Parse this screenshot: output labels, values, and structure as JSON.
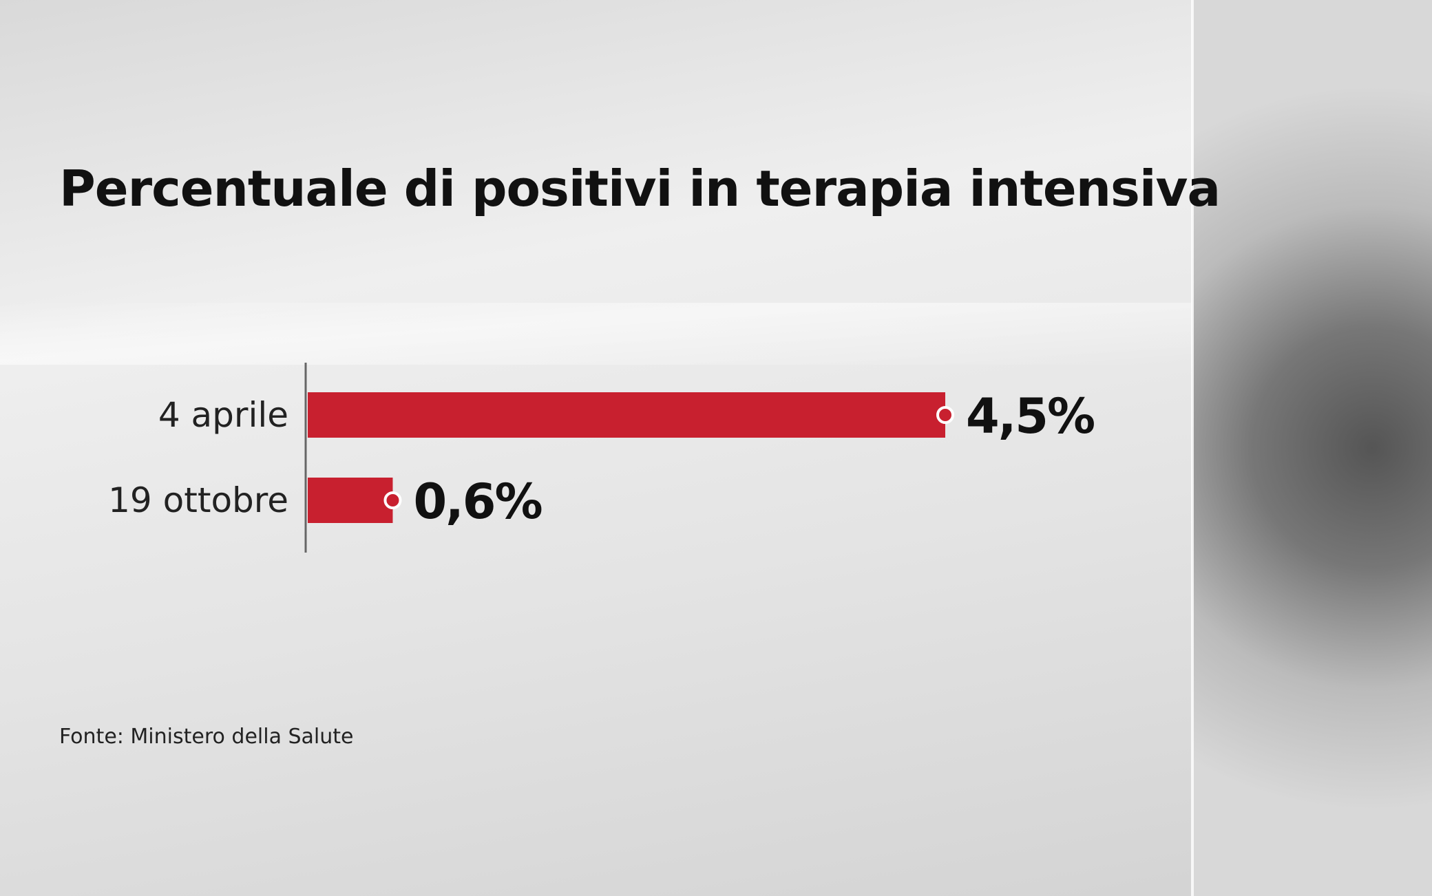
{
  "chart_data": {
    "type": "bar",
    "orientation": "horizontal",
    "title": "Percentuale di positivi in terapia intensiva",
    "categories": [
      "4 aprile",
      "19 ottobre"
    ],
    "values": [
      4.5,
      0.6
    ],
    "value_labels": [
      "4,5%",
      "0,6%"
    ],
    "unit": "%",
    "xlim": [
      0,
      4.5
    ],
    "grid": false,
    "bar_color": "#c8202f",
    "source": "Fonte: Ministero della Salute"
  }
}
